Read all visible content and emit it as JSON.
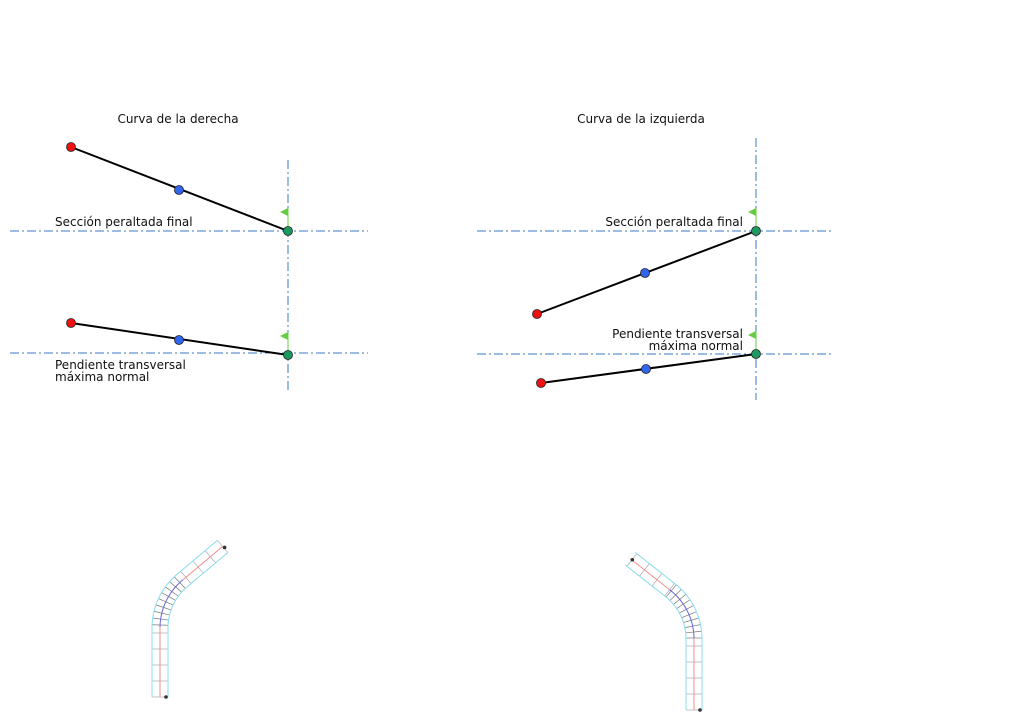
{
  "colors": {
    "axis": "#3a78c8",
    "point_start": "#ee1111",
    "point_mid": "#3366ee",
    "point_end": "#1a9960",
    "flag": "#66cc44",
    "road_edge": "#88ddf0",
    "road_center_straight": "#f09090",
    "road_center_curve": "#6666dd"
  },
  "left_panel": {
    "title": "Curva de la derecha",
    "label_top": "Sección peraltada final",
    "label_bottom_line1": "Pendiente transversal",
    "label_bottom_line2": "máxima normal",
    "flag_icon": "flag-icon"
  },
  "right_panel": {
    "title": "Curva de la izquierda",
    "label_top": "Sección peraltada final",
    "label_bottom_line1": "Pendiente transversal",
    "label_bottom_line2": "máxima normal",
    "flag_icon": "flag-icon"
  }
}
